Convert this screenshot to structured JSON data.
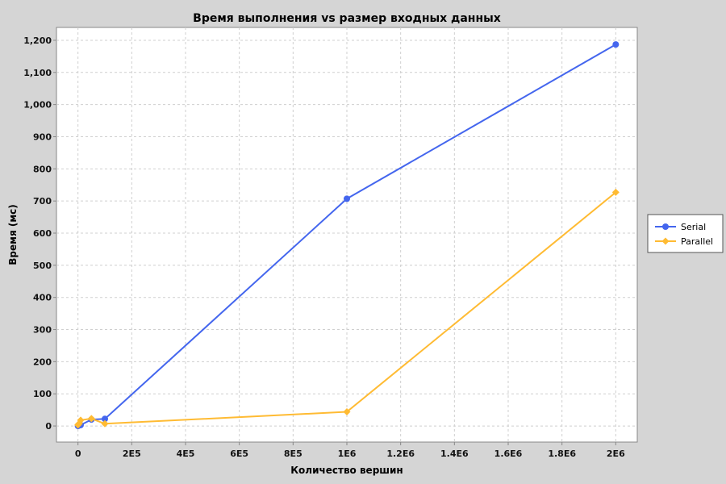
{
  "chart_data": {
    "type": "line",
    "title": "Время выполнения vs размер входных данных",
    "xlabel": "Количество вершин",
    "ylabel": "Время (мс)",
    "xlim": [
      -80000,
      2080000
    ],
    "ylim": [
      -50,
      1240
    ],
    "xticks": [
      0,
      200000,
      400000,
      600000,
      800000,
      1000000,
      1200000,
      1400000,
      1600000,
      1800000,
      2000000
    ],
    "xtick_labels": [
      "0",
      "2E5",
      "4E5",
      "6E5",
      "8E5",
      "1E6",
      "1.2E6",
      "1.4E6",
      "1.6E6",
      "1.8E6",
      "2E6"
    ],
    "yticks": [
      0,
      100,
      200,
      300,
      400,
      500,
      600,
      700,
      800,
      900,
      1000,
      1100,
      1200
    ],
    "ytick_labels": [
      "0",
      "100",
      "200",
      "300",
      "400",
      "500",
      "600",
      "700",
      "800",
      "900",
      "1,000",
      "1,100",
      "1,200"
    ],
    "grid": true,
    "legend_position": "right",
    "series": [
      {
        "name": "Serial",
        "color": "#4466ee",
        "marker": "circle",
        "points": [
          [
            0,
            0
          ],
          [
            1000,
            1
          ],
          [
            5000,
            2
          ],
          [
            10000,
            3
          ],
          [
            50000,
            20
          ],
          [
            100000,
            22
          ],
          [
            1000000,
            707
          ],
          [
            2000000,
            1187
          ]
        ]
      },
      {
        "name": "Parallel",
        "color": "#ffbb33",
        "marker": "diamond",
        "points": [
          [
            0,
            3
          ],
          [
            1000,
            5
          ],
          [
            5000,
            8
          ],
          [
            10000,
            18
          ],
          [
            50000,
            23
          ],
          [
            100000,
            7
          ],
          [
            1000000,
            44
          ],
          [
            2000000,
            727
          ]
        ]
      }
    ]
  }
}
